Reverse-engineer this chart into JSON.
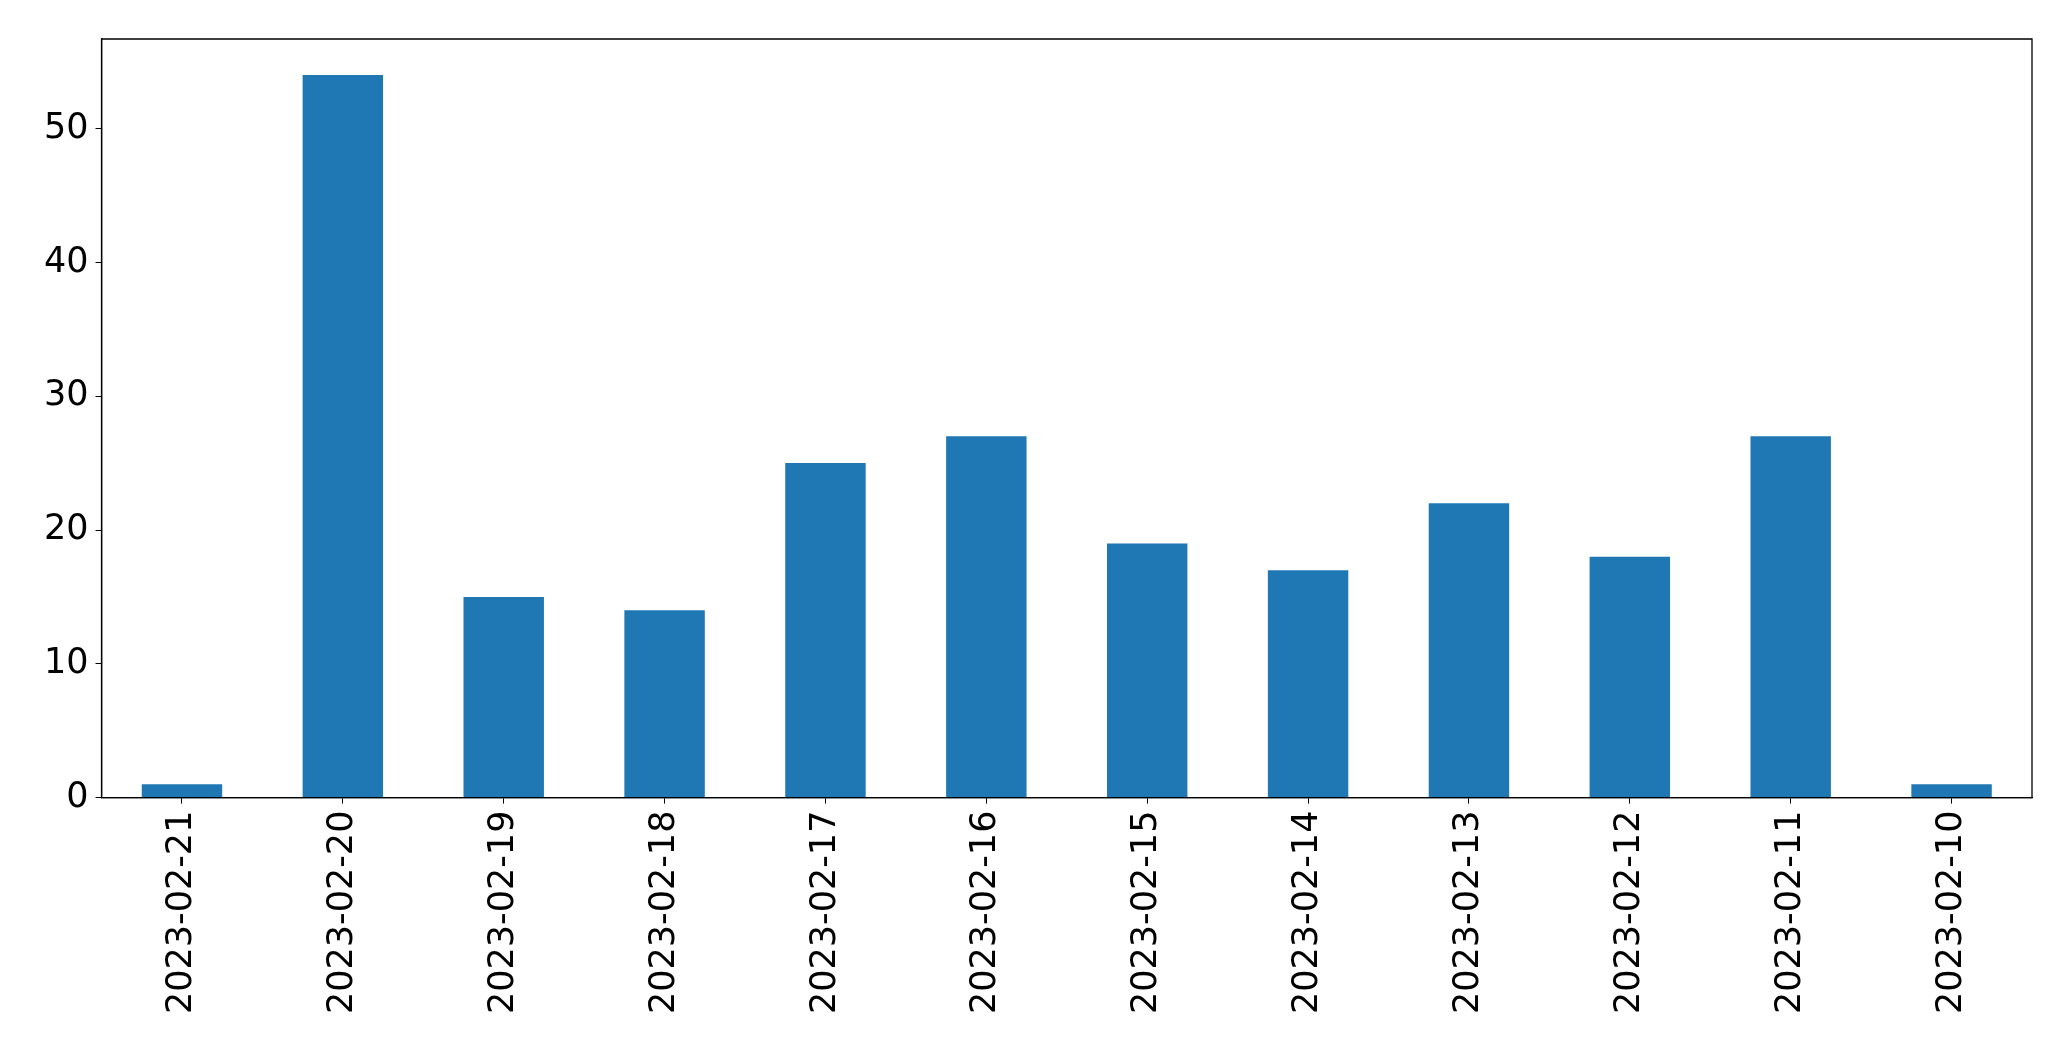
{
  "chart_data": {
    "type": "bar",
    "categories": [
      "2023-02-21",
      "2023-02-20",
      "2023-02-19",
      "2023-02-18",
      "2023-02-17",
      "2023-02-16",
      "2023-02-15",
      "2023-02-14",
      "2023-02-13",
      "2023-02-12",
      "2023-02-11",
      "2023-02-10"
    ],
    "values": [
      1,
      54,
      15,
      14,
      25,
      27,
      19,
      17,
      22,
      18,
      27,
      1
    ],
    "color": "#1f77b4",
    "ylim": [
      0,
      56.7
    ],
    "yticks": [
      0,
      10,
      20,
      30,
      40,
      50
    ],
    "grid": false
  }
}
